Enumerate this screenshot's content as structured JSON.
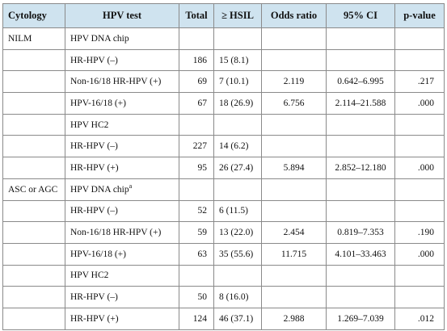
{
  "headers": [
    "Cytology",
    "HPV test",
    "Total",
    "≥ HSIL",
    "Odds ratio",
    "95% CI",
    "p-value"
  ],
  "groups": [
    {
      "cytology": "NILM",
      "rows": [
        {
          "test": "HPV DNA chip",
          "sup": "",
          "total": "",
          "hsil": "",
          "or": "",
          "ci": "",
          "p": ""
        },
        {
          "test": "HR-HPV (–)",
          "sup": "",
          "total": "186",
          "hsil": "15 (8.1)",
          "or": "",
          "ci": "",
          "p": ""
        },
        {
          "test": "Non-16/18 HR-HPV (+)",
          "sup": "",
          "total": "69",
          "hsil": "7 (10.1)",
          "or": "2.119",
          "ci": "0.642–6.995",
          "p": ".217"
        },
        {
          "test": "HPV-16/18 (+)",
          "sup": "",
          "total": "67",
          "hsil": "18 (26.9)",
          "or": "6.756",
          "ci": "2.114–21.588",
          "p": ".000"
        },
        {
          "test": "HPV HC2",
          "sup": "",
          "total": "",
          "hsil": "",
          "or": "",
          "ci": "",
          "p": ""
        },
        {
          "test": "HR-HPV (–)",
          "sup": "",
          "total": "227",
          "hsil": "14 (6.2)",
          "or": "",
          "ci": "",
          "p": ""
        },
        {
          "test": "HR-HPV (+)",
          "sup": "",
          "total": "95",
          "hsil": "26 (27.4)",
          "or": "5.894",
          "ci": "2.852–12.180",
          "p": ".000"
        }
      ]
    },
    {
      "cytology": "ASC or AGC",
      "rows": [
        {
          "test": "HPV DNA chip",
          "sup": "a",
          "total": "",
          "hsil": "",
          "or": "",
          "ci": "",
          "p": ""
        },
        {
          "test": "HR-HPV (–)",
          "sup": "",
          "total": "52",
          "hsil": "6 (11.5)",
          "or": "",
          "ci": "",
          "p": ""
        },
        {
          "test": "Non-16/18 HR-HPV (+)",
          "sup": "",
          "total": "59",
          "hsil": "13 (22.0)",
          "or": "2.454",
          "ci": "0.819–7.353",
          "p": ".190"
        },
        {
          "test": "HPV-16/18 (+)",
          "sup": "",
          "total": "63",
          "hsil": "35 (55.6)",
          "or": "11.715",
          "ci": "4.101–33.463",
          "p": ".000"
        },
        {
          "test": "HPV HC2",
          "sup": "",
          "total": "",
          "hsil": "",
          "or": "",
          "ci": "",
          "p": ""
        },
        {
          "test": "HR-HPV (–)",
          "sup": "",
          "total": "50",
          "hsil": "8 (16.0)",
          "or": "",
          "ci": "",
          "p": ""
        },
        {
          "test": "HR-HPV (+)",
          "sup": "",
          "total": "124",
          "hsil": "46 (37.1)",
          "or": "2.988",
          "ci": "1.269–7.039",
          "p": ".012"
        }
      ]
    }
  ]
}
